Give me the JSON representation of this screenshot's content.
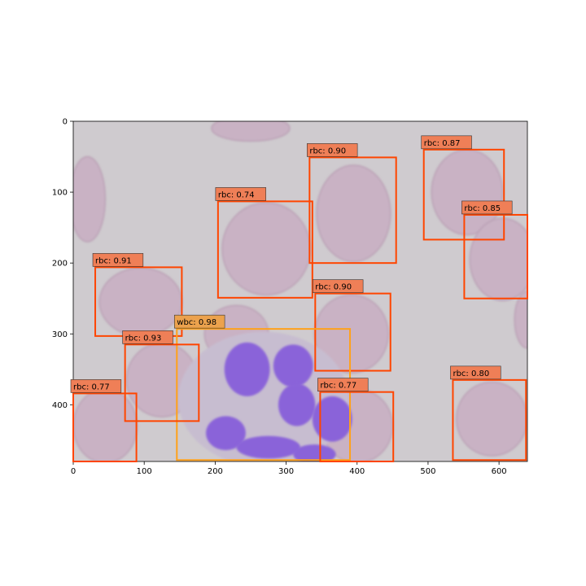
{
  "image": {
    "width": 640,
    "height": 480,
    "x_ticks": [
      0,
      100,
      200,
      300,
      400,
      500,
      600
    ],
    "y_ticks": [
      0,
      100,
      200,
      300,
      400
    ],
    "background_color": "#cfcbcf",
    "cell_colors": {
      "rbc": "#c9b2c4",
      "wbc_nucleus": "#8a63d9",
      "wbc_cytoplasm": "#c7bdd0"
    }
  },
  "colors": {
    "rbc_box": "#ff4500",
    "rbc_label_bg": "#ef7f57",
    "wbc_box": "#ffa11a",
    "wbc_label_bg": "#eca24d"
  },
  "detections": [
    {
      "label": "rbc: 0.90",
      "cls": "rbc",
      "x1": 333,
      "y1": 51,
      "x2": 455,
      "y2": 200
    },
    {
      "label": "rbc: 0.87",
      "cls": "rbc",
      "x1": 494,
      "y1": 40,
      "x2": 607,
      "y2": 167
    },
    {
      "label": "rbc: 0.74",
      "cls": "rbc",
      "x1": 204,
      "y1": 113,
      "x2": 337,
      "y2": 249
    },
    {
      "label": "rbc: 0.85",
      "cls": "rbc",
      "x1": 551,
      "y1": 132,
      "x2": 640,
      "y2": 250
    },
    {
      "label": "rbc: 0.91",
      "cls": "rbc",
      "x1": 31,
      "y1": 206,
      "x2": 153,
      "y2": 303
    },
    {
      "label": "rbc: 0.90",
      "cls": "rbc",
      "x1": 341,
      "y1": 243,
      "x2": 447,
      "y2": 352
    },
    {
      "label": "wbc: 0.98",
      "cls": "wbc",
      "x1": 146,
      "y1": 293,
      "x2": 390,
      "y2": 478
    },
    {
      "label": "rbc: 0.93",
      "cls": "rbc",
      "x1": 73,
      "y1": 315,
      "x2": 177,
      "y2": 423
    },
    {
      "label": "rbc: 0.77",
      "cls": "rbc",
      "x1": 0,
      "y1": 384,
      "x2": 89,
      "y2": 480
    },
    {
      "label": "rbc: 0.77",
      "cls": "rbc",
      "x1": 348,
      "y1": 382,
      "x2": 451,
      "y2": 480
    },
    {
      "label": "rbc: 0.80",
      "cls": "rbc",
      "x1": 535,
      "y1": 365,
      "x2": 638,
      "y2": 478
    }
  ]
}
